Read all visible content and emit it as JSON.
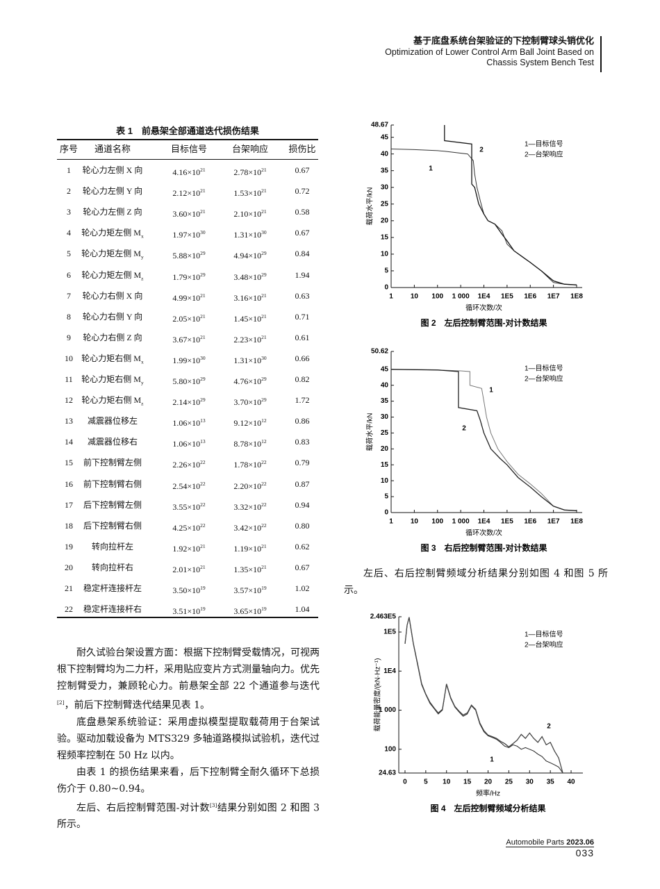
{
  "header": {
    "title_cn": "基于底盘系统台架验证的下控制臂球头销优化",
    "title_en": "Optimization of Lower Control Arm Ball Joint Based on Chassis System Bench Test"
  },
  "table": {
    "caption": "表 1　前悬架全部通道迭代损伤结果",
    "columns": [
      "序号",
      "通道名称",
      "目标信号",
      "台架响应",
      "损伤比"
    ],
    "rows": [
      [
        1,
        "轮心力左侧 X 向",
        {
          "m": "4.16×10",
          "e": "21"
        },
        {
          "m": "2.78×10",
          "e": "21"
        },
        "0.67"
      ],
      [
        2,
        "轮心力左侧 Y 向",
        {
          "m": "2.12×10",
          "e": "21"
        },
        {
          "m": "1.53×10",
          "e": "21"
        },
        "0.72"
      ],
      [
        3,
        "轮心力左侧 Z 向",
        {
          "m": "3.60×10",
          "e": "21"
        },
        {
          "m": "2.10×10",
          "e": "21"
        },
        "0.58"
      ],
      [
        4,
        {
          "base": "轮心力矩左侧 M",
          "sub": "x"
        },
        {
          "m": "1.97×10",
          "e": "30"
        },
        {
          "m": "1.31×10",
          "e": "30"
        },
        "0.67"
      ],
      [
        5,
        {
          "base": "轮心力矩左侧 M",
          "sub": "y"
        },
        {
          "m": "5.88×10",
          "e": "29"
        },
        {
          "m": "4.94×10",
          "e": "29"
        },
        "0.84"
      ],
      [
        6,
        {
          "base": "轮心力矩左侧 M",
          "sub": "z"
        },
        {
          "m": "1.79×10",
          "e": "29"
        },
        {
          "m": "3.48×10",
          "e": "29"
        },
        "1.94"
      ],
      [
        7,
        "轮心力右侧 X 向",
        {
          "m": "4.99×10",
          "e": "21"
        },
        {
          "m": "3.16×10",
          "e": "21"
        },
        "0.63"
      ],
      [
        8,
        "轮心力右侧 Y 向",
        {
          "m": "2.05×10",
          "e": "21"
        },
        {
          "m": "1.45×10",
          "e": "21"
        },
        "0.71"
      ],
      [
        9,
        "轮心力右侧 Z 向",
        {
          "m": "3.67×10",
          "e": "21"
        },
        {
          "m": "2.23×10",
          "e": "21"
        },
        "0.61"
      ],
      [
        10,
        {
          "base": "轮心力矩右侧 M",
          "sub": "x"
        },
        {
          "m": "1.99×10",
          "e": "30"
        },
        {
          "m": "1.31×10",
          "e": "30"
        },
        "0.66"
      ],
      [
        11,
        {
          "base": "轮心力矩右侧 M",
          "sub": "y"
        },
        {
          "m": "5.80×10",
          "e": "29"
        },
        {
          "m": "4.76×10",
          "e": "29"
        },
        "0.82"
      ],
      [
        12,
        {
          "base": "轮心力矩右侧 M",
          "sub": "z"
        },
        {
          "m": "2.14×10",
          "e": "29"
        },
        {
          "m": "3.70×10",
          "e": "29"
        },
        "1.72"
      ],
      [
        13,
        "减震器位移左",
        {
          "m": "1.06×10",
          "e": "13"
        },
        {
          "m": "9.12×10",
          "e": "12"
        },
        "0.86"
      ],
      [
        14,
        "减震器位移右",
        {
          "m": "1.06×10",
          "e": "13"
        },
        {
          "m": "8.78×10",
          "e": "12"
        },
        "0.83"
      ],
      [
        15,
        "前下控制臂左侧",
        {
          "m": "2.26×10",
          "e": "22"
        },
        {
          "m": "1.78×10",
          "e": "22"
        },
        "0.79"
      ],
      [
        16,
        "前下控制臂右侧",
        {
          "m": "2.54×10",
          "e": "22"
        },
        {
          "m": "2.20×10",
          "e": "22"
        },
        "0.87"
      ],
      [
        17,
        "后下控制臂左侧",
        {
          "m": "3.55×10",
          "e": "22"
        },
        {
          "m": "3.32×10",
          "e": "22"
        },
        "0.94"
      ],
      [
        18,
        "后下控制臂右侧",
        {
          "m": "4.25×10",
          "e": "22"
        },
        {
          "m": "3.42×10",
          "e": "22"
        },
        "0.80"
      ],
      [
        19,
        "转向拉杆左",
        {
          "m": "1.92×10",
          "e": "21"
        },
        {
          "m": "1.19×10",
          "e": "21"
        },
        "0.62"
      ],
      [
        20,
        "转向拉杆右",
        {
          "m": "2.01×10",
          "e": "21"
        },
        {
          "m": "1.35×10",
          "e": "21"
        },
        "0.67"
      ],
      [
        21,
        "稳定杆连接杆左",
        {
          "m": "3.50×10",
          "e": "19"
        },
        {
          "m": "3.57×10",
          "e": "19"
        },
        "1.02"
      ],
      [
        22,
        "稳定杆连接杆右",
        {
          "m": "3.51×10",
          "e": "19"
        },
        {
          "m": "3.65×10",
          "e": "19"
        },
        "1.04"
      ]
    ]
  },
  "body": [
    [
      {
        "text": "耐久试验台架设置方面：根据下控制臂受载情况，可视两根下控制臂均为二力杆，采用贴应变片方式测量轴向力。优先控制臂受力，兼顾轮心力。前悬架全部 22 个通道参与迭代"
      },
      {
        "sup": "[2]"
      },
      {
        "text": "，前后下控制臂迭代结果见表 1。"
      }
    ],
    [
      {
        "text": "底盘悬架系统验证：采用虚拟模型提取载荷用于台架试验。驱动加载设备为 MTS329 多轴道路模拟试验机，迭代过程频率控制在 50 Hz 以内。"
      }
    ],
    [
      {
        "text": "由表 1 的损伤结果来看，后下控制臂全耐久循环下总损伤介于 0.80~0.94。"
      }
    ],
    [
      {
        "text": "左后、右后控制臂范围-对计数"
      },
      {
        "sup": "[3]"
      },
      {
        "text": "结果分别如图 2 和图 3 所示。"
      }
    ],
    [
      {
        "text": "左后、右后控制臂频域分析结果分别如图 4 和图 5 所示。"
      }
    ]
  ],
  "chart_data": [
    {
      "type": "line",
      "caption": "图 2　左后控制臂范围-对计数结果",
      "xlabel": "循环次数/次",
      "ylabel": "载荷水平/kN",
      "xscale": "log",
      "xlim": [
        1,
        100000000
      ],
      "xticks": [
        1,
        10,
        100,
        {
          "value": 1000,
          "label": "1 000"
        },
        {
          "value": 10000,
          "label": "1E4"
        },
        {
          "value": 100000,
          "label": "1E5"
        },
        {
          "value": 1000000,
          "label": "1E6"
        },
        {
          "value": 10000000,
          "label": "1E7"
        },
        {
          "value": 100000000,
          "label": "1E8"
        }
      ],
      "ylim": [
        0,
        48.67
      ],
      "yticks": [
        0,
        5,
        10,
        15,
        20,
        25,
        30,
        35,
        40,
        45,
        48.67
      ],
      "legend": "upper right",
      "series": [
        {
          "name": "1—目标信号",
          "curve_label": "1",
          "color": "#333333",
          "x": [
            1,
            10,
            100,
            200,
            2000,
            3500,
            4000,
            5000,
            7000,
            10000,
            15000,
            30000,
            60000,
            100000,
            200000,
            500000,
            1000000,
            3000000,
            10000000,
            30000000,
            100000000
          ],
          "values": [
            41.5,
            41.3,
            41,
            40.8,
            40,
            38,
            34,
            30,
            26,
            22,
            20,
            19,
            17,
            13,
            11,
            9,
            7.5,
            5,
            1.5,
            1,
            0.8
          ]
        },
        {
          "name": "2—台架响应",
          "curve_label": "2",
          "color": "#111111",
          "x": [
            200,
            200,
            3000,
            3000,
            4000,
            6000,
            10000,
            15000,
            30000,
            60000,
            100000,
            200000,
            500000,
            1000000,
            3000000,
            10000000,
            30000000,
            100000000
          ],
          "values": [
            48.67,
            44,
            43,
            31,
            30,
            25,
            22,
            20,
            19,
            16,
            14,
            11,
            9,
            7.5,
            5,
            2,
            1,
            0.8
          ]
        }
      ]
    },
    {
      "type": "line",
      "caption": "图 3　右后控制臂范围-对计数结果",
      "xlabel": "循环次数/次",
      "ylabel": "载荷水平/kN",
      "xscale": "log",
      "xlim": [
        1,
        100000000
      ],
      "xticks": [
        1,
        10,
        100,
        {
          "value": 1000,
          "label": "1 000"
        },
        {
          "value": 10000,
          "label": "1E4"
        },
        {
          "value": 100000,
          "label": "1E5"
        },
        {
          "value": 1000000,
          "label": "1E6"
        },
        {
          "value": 10000000,
          "label": "1E7"
        },
        {
          "value": 100000000,
          "label": "1E8"
        }
      ],
      "ylim": [
        0,
        50.62
      ],
      "yticks": [
        0,
        5,
        10,
        15,
        20,
        25,
        30,
        35,
        40,
        45,
        50.62
      ],
      "legend": "upper right",
      "series": [
        {
          "name": "1—目标信号",
          "curve_label": "1",
          "color": "#777777",
          "x": [
            1,
            100,
            1000,
            2500,
            2500,
            8000,
            10000,
            13000,
            20000,
            40000,
            100000,
            300000,
            1000000,
            3000000,
            10000000,
            30000000,
            100000000
          ],
          "values": [
            45,
            44.8,
            44.5,
            44.3,
            40,
            39,
            35,
            30,
            25,
            20,
            16,
            12,
            9,
            6,
            2,
            0.8,
            0.6
          ]
        },
        {
          "name": "2—台架响应",
          "curve_label": "2",
          "color": "#222222",
          "x": [
            1,
            100,
            800,
            800,
            5000,
            7000,
            10000,
            20000,
            50000,
            100000,
            300000,
            1000000,
            3000000,
            10000000,
            30000000,
            100000000
          ],
          "values": [
            45,
            44.8,
            44.3,
            33,
            32,
            29,
            25,
            20,
            17,
            15,
            11,
            8,
            5,
            2,
            0.8,
            0.6
          ]
        }
      ]
    },
    {
      "type": "line",
      "caption": "图 4　左后控制臂频域分析结果",
      "xlabel": "频率/Hz",
      "ylabel": "载荷能量密度/(kN·Hz⁻¹)",
      "xscale": "linear",
      "xlim": [
        -1.5,
        41.5
      ],
      "xticks": [
        0,
        5,
        10,
        15,
        20,
        25,
        30,
        35,
        40
      ],
      "yscale": "log",
      "ylim": [
        24.63,
        246300
      ],
      "yticks": [
        24.63,
        100,
        {
          "value": 1000,
          "label": "1 000"
        },
        {
          "value": 10000,
          "label": "1E4"
        },
        {
          "value": 100000,
          "label": "1E5"
        },
        {
          "value": 246300,
          "label": "2.463E5"
        }
      ],
      "legend": "upper right",
      "series": [
        {
          "name": "1—目标信号",
          "curve_label": "1",
          "color": "#222222",
          "x": [
            0,
            0.5,
            1,
            2,
            3,
            4,
            5,
            6,
            7,
            8,
            9,
            10,
            11,
            12,
            13,
            14,
            15,
            16,
            17,
            18,
            19,
            20,
            21,
            22,
            23,
            24,
            25,
            26,
            27,
            28,
            29,
            30,
            31,
            32,
            33,
            34,
            35,
            36,
            37,
            38
          ],
          "values": [
            50000,
            150000,
            230000,
            50000,
            15000,
            4500,
            2500,
            1500,
            1100,
            800,
            1000,
            4500,
            2000,
            1200,
            900,
            700,
            800,
            1300,
            1000,
            450,
            280,
            220,
            200,
            180,
            150,
            120,
            110,
            130,
            120,
            100,
            110,
            100,
            90,
            75,
            65,
            50,
            45,
            40,
            35,
            24.63
          ]
        },
        {
          "name": "2—台架响应",
          "curve_label": "2",
          "color": "#444444",
          "x": [
            0,
            0.5,
            1,
            2,
            3,
            4,
            5,
            6,
            7,
            8,
            9,
            10,
            11,
            12,
            13,
            14,
            15,
            16,
            17,
            18,
            19,
            20,
            21,
            22,
            23,
            24,
            25,
            26,
            27,
            28,
            29,
            30,
            31,
            32,
            33,
            34,
            35,
            36,
            37,
            38
          ],
          "values": [
            50000,
            150000,
            240000,
            52000,
            16000,
            4800,
            2600,
            1600,
            1150,
            850,
            1050,
            4700,
            2100,
            1250,
            950,
            750,
            850,
            1350,
            1050,
            480,
            300,
            230,
            210,
            190,
            160,
            140,
            115,
            140,
            170,
            240,
            190,
            260,
            190,
            150,
            210,
            130,
            150,
            90,
            60,
            24.63
          ]
        }
      ]
    }
  ],
  "footer": {
    "journal": "Automobile Parts",
    "issue": "2023.06",
    "page": "033"
  }
}
